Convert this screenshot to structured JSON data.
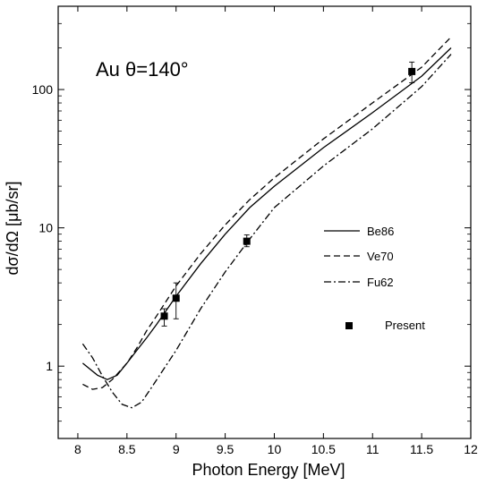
{
  "chart_data": {
    "type": "line",
    "annotation": "Au θ=140°",
    "xlabel": "Photon Energy [MeV]",
    "ylabel": "dσ/dΩ [μb/sr]",
    "xlim": [
      7.8,
      12
    ],
    "ylim": [
      0.3,
      400
    ],
    "y_scale": "log",
    "x_ticks": [
      "8",
      "8.5",
      "9",
      "9.5",
      "10",
      "10.5",
      "11",
      "11.5",
      "12"
    ],
    "y_ticks": [
      "1",
      "10",
      "100"
    ],
    "grid": false,
    "legend_position": "right",
    "series": [
      {
        "name": "Be86",
        "style": "solid",
        "x": [
          8.05,
          8.2,
          8.3,
          8.4,
          8.5,
          8.6,
          8.7,
          8.8,
          9.0,
          9.25,
          9.5,
          9.75,
          10.0,
          10.5,
          11.0,
          11.5,
          11.8
        ],
        "y": [
          1.05,
          0.86,
          0.8,
          0.86,
          1.05,
          1.3,
          1.6,
          2.0,
          3.2,
          5.5,
          9.0,
          14.0,
          20.0,
          38.0,
          68.0,
          125.0,
          200.0
        ]
      },
      {
        "name": "Ve70",
        "style": "dashed",
        "x": [
          8.05,
          8.15,
          8.25,
          8.35,
          8.5,
          8.6,
          8.7,
          8.8,
          9.0,
          9.25,
          9.5,
          9.75,
          10.0,
          10.5,
          11.0,
          11.5,
          11.8
        ],
        "y": [
          0.74,
          0.68,
          0.7,
          0.8,
          1.05,
          1.35,
          1.8,
          2.3,
          3.8,
          6.5,
          10.5,
          16.0,
          23.0,
          44.0,
          80.0,
          145.0,
          240.0
        ]
      },
      {
        "name": "Fu62",
        "style": "dashdot",
        "x": [
          8.05,
          8.15,
          8.25,
          8.35,
          8.45,
          8.55,
          8.65,
          8.75,
          9.0,
          9.25,
          9.5,
          9.75,
          10.0,
          10.5,
          11.0,
          11.5,
          11.8
        ],
        "y": [
          1.45,
          1.15,
          0.85,
          0.65,
          0.53,
          0.5,
          0.55,
          0.7,
          1.3,
          2.6,
          4.8,
          8.3,
          14.0,
          28.0,
          52.0,
          105.0,
          180.0
        ]
      }
    ],
    "points": {
      "name": "Present",
      "x": [
        8.88,
        9.0,
        9.72,
        11.4
      ],
      "y": [
        2.3,
        3.1,
        8.0,
        135.0
      ],
      "yerr_low": [
        1.95,
        2.2,
        7.3,
        112.0
      ],
      "yerr_high": [
        2.6,
        4.0,
        8.9,
        158.0
      ]
    }
  }
}
